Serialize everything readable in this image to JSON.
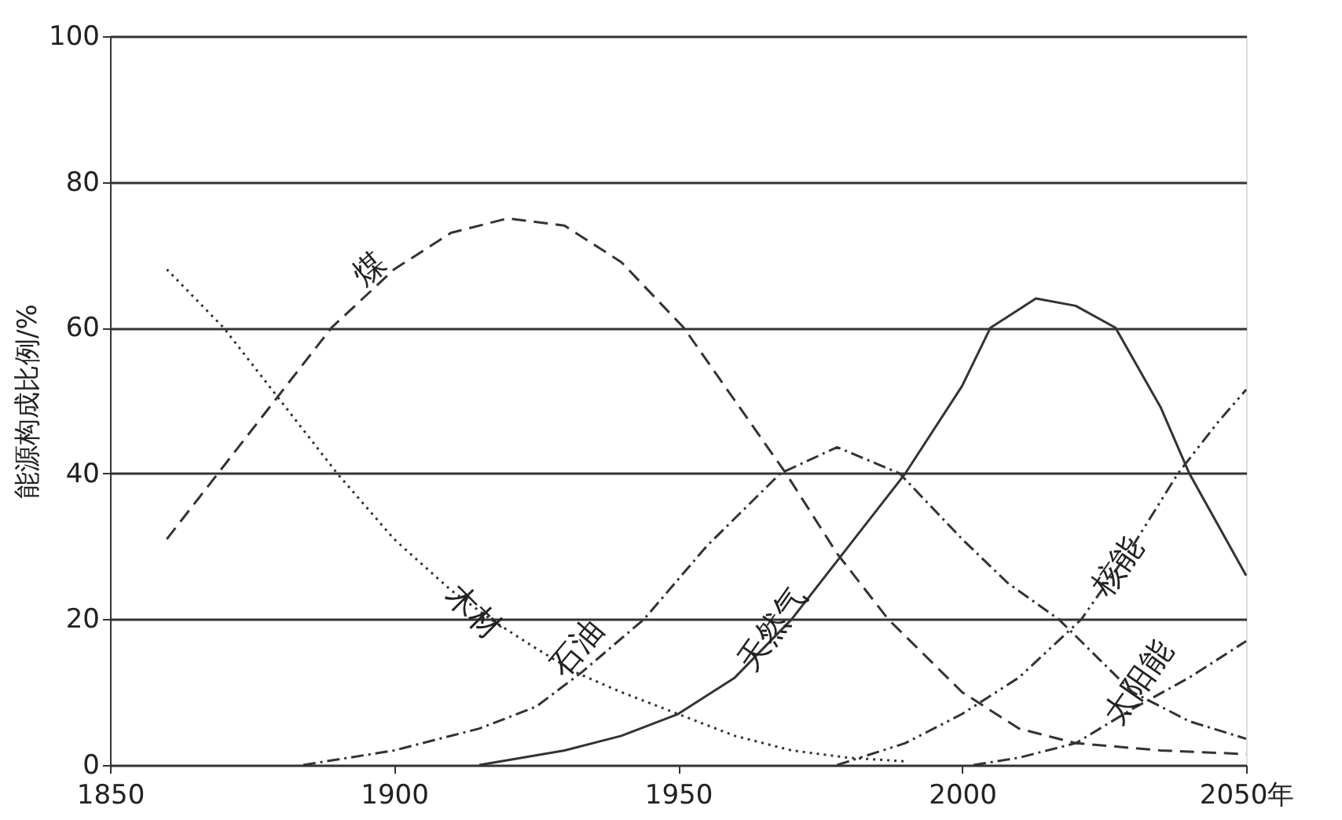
{
  "chart_data": {
    "type": "line",
    "ylabel": "能源构成比例/%",
    "xlim": [
      1850,
      2050
    ],
    "xticks": [
      1850,
      1900,
      1950,
      2000,
      {
        "value": 2050,
        "label": "2050年"
      }
    ],
    "ylim": [
      0,
      100
    ],
    "yticks": [
      0,
      20,
      40,
      60,
      80,
      100
    ],
    "grid": "y",
    "legend": false,
    "marker": "none",
    "series": [
      {
        "name": "煤",
        "color": "#333333",
        "line_style": "dashed",
        "x": [
          1860,
          1869,
          1880,
          1889,
          1900,
          1910,
          1920,
          1930,
          1940,
          1951,
          1960,
          1969,
          1978,
          1987,
          2000,
          2010,
          2020,
          2035,
          2050
        ],
        "values": [
          31,
          40,
          51,
          60,
          68,
          73,
          75,
          74,
          69,
          60,
          50,
          40,
          29,
          20,
          10,
          5,
          3,
          2,
          1.5
        ]
      },
      {
        "name": "木材",
        "color": "#333333",
        "line_style": "dotted",
        "x": [
          1860,
          1870,
          1880,
          1890,
          1900,
          1910,
          1917,
          1925,
          1932,
          1940,
          1950,
          1960,
          1970,
          1980,
          1990
        ],
        "values": [
          68,
          60,
          50,
          40,
          31,
          24,
          20,
          16,
          12.7,
          10,
          7,
          4,
          2,
          1,
          0.5
        ]
      },
      {
        "name": "石油",
        "color": "#333333",
        "line_style": "dashdot",
        "x": [
          1884,
          1900,
          1915,
          1925,
          1933,
          1944,
          1955,
          1968,
          1978,
          1989,
          2000,
          2008,
          2017,
          2030,
          2040,
          2050
        ],
        "values": [
          0,
          2,
          5,
          8,
          12.7,
          20,
          30,
          40,
          43.6,
          40,
          31,
          25,
          20,
          10,
          6,
          3.6
        ]
      },
      {
        "name": "天然气",
        "color": "#333333",
        "line_style": "solid",
        "x": [
          1915,
          1930,
          1940,
          1950,
          1960,
          1970,
          1980,
          1990,
          2000,
          2005,
          2013,
          2020,
          2027,
          2035,
          2040,
          2045,
          2050
        ],
        "values": [
          0,
          2,
          4,
          7,
          12,
          20,
          30,
          40,
          52,
          60,
          64,
          63,
          60,
          49,
          40,
          33,
          26
        ]
      },
      {
        "name": "核能",
        "color": "#333333",
        "line_style": "dashdotdot",
        "x": [
          1978,
          1990,
          2000,
          2010,
          2021,
          2030,
          2038,
          2045,
          2050
        ],
        "values": [
          0,
          3,
          7,
          12,
          20,
          30,
          40,
          47,
          51.5
        ]
      },
      {
        "name": "太阳能",
        "color": "#333333",
        "line_style": "dashdot",
        "x": [
          2002,
          2010,
          2020,
          2030,
          2040,
          2050
        ],
        "values": [
          0,
          1,
          3,
          7.7,
          12,
          17
        ]
      }
    ]
  }
}
